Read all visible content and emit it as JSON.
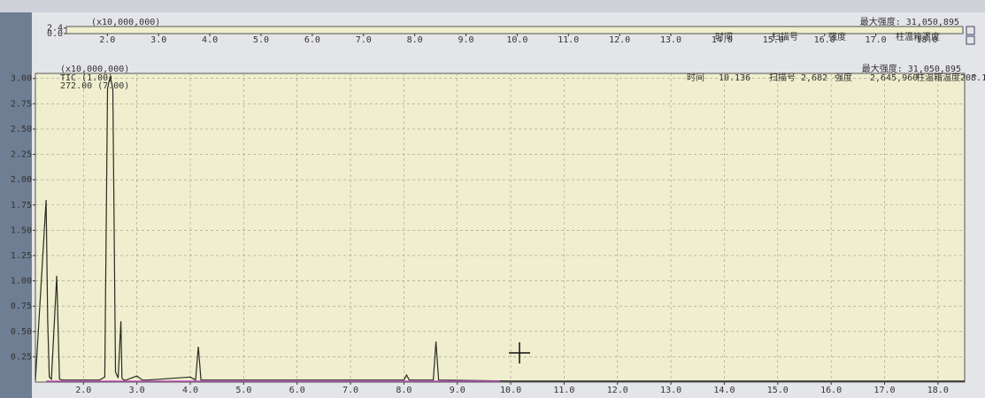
{
  "chart_data": [
    {
      "type": "axis",
      "scale_label": "(x10,000,000)",
      "max_intensity": "最大强度: 31,050,895",
      "header": [
        "时间",
        "扫描号",
        "强度",
        "柱温箱温度"
      ],
      "xlim": [
        1.2,
        18.7
      ],
      "xticks": [
        {
          "value": 2,
          "label": "2.0"
        },
        {
          "value": 3,
          "label": "3.0"
        },
        {
          "value": 4,
          "label": "4.0"
        },
        {
          "value": 5,
          "label": "5.0"
        },
        {
          "value": 6,
          "label": "6.0"
        },
        {
          "value": 7,
          "label": "7.0"
        },
        {
          "value": 8,
          "label": "8.0"
        },
        {
          "value": 9,
          "label": "9.0"
        },
        {
          "value": 10,
          "label": "10.0"
        },
        {
          "value": 11,
          "label": "11.0"
        },
        {
          "value": 12,
          "label": "12.0"
        },
        {
          "value": 13,
          "label": "13.0"
        },
        {
          "value": 14,
          "label": "14.0"
        },
        {
          "value": 15,
          "label": "15.0"
        },
        {
          "value": 16,
          "label": "16.0"
        },
        {
          "value": 17,
          "label": "17.0"
        },
        {
          "value": 18,
          "label": "18.0"
        }
      ],
      "ylim": [
        0,
        3.05
      ],
      "yticks": [
        {
          "value": 0,
          "label": "0.0"
        },
        2.4
      ]
    },
    {
      "type": "line",
      "scale_label": "(x10,000,000)",
      "max_intensity": "最大强度: 31,050,895",
      "status": [
        "时间",
        "10.136",
        "扫描号",
        "2,682",
        "强度",
        "2,645,960",
        "柱温箱温度208.18"
      ],
      "grid": true,
      "xlim": [
        1.1,
        18.5
      ],
      "xticks": [
        {
          "value": 2,
          "label": "2.0"
        },
        {
          "value": 3,
          "label": "3.0"
        },
        {
          "value": 4,
          "label": "4.0"
        },
        {
          "value": 5,
          "label": "5.0"
        },
        {
          "value": 6,
          "label": "6.0"
        },
        {
          "value": 7,
          "label": "7.0"
        },
        {
          "value": 8,
          "label": "8.0"
        },
        {
          "value": 9,
          "label": "9.0"
        },
        {
          "value": 10,
          "label": "10.0"
        },
        {
          "value": 11,
          "label": "11.0"
        },
        {
          "value": 12,
          "label": "12.0"
        },
        {
          "value": 13,
          "label": "13.0"
        },
        {
          "value": 14,
          "label": "14.0"
        },
        {
          "value": 15,
          "label": "15.0"
        },
        {
          "value": 16,
          "label": "16.0"
        },
        {
          "value": 17,
          "label": "17.0"
        },
        {
          "value": 18,
          "label": "18.0"
        }
      ],
      "ylim": [
        0,
        3.05
      ],
      "yticks": [
        0.25,
        {
          "value": 0.5,
          "label": "0.50"
        },
        0.75,
        {
          "value": 1,
          "label": "1.00"
        },
        1.25,
        {
          "value": 1.5,
          "label": "1.50"
        },
        1.75,
        {
          "value": 2,
          "label": "2.00"
        },
        2.25,
        {
          "value": 2.5,
          "label": "2.50"
        },
        2.75,
        {
          "value": 3,
          "label": "3.00"
        }
      ],
      "series": [
        {
          "name": "TIC (1.00)",
          "color": "#2a2a22",
          "x": [
            1.1,
            1.2,
            1.3,
            1.33,
            1.36,
            1.4,
            1.5,
            1.55,
            1.6,
            1.8,
            2.3,
            2.4,
            2.45,
            2.5,
            2.55,
            2.6,
            2.65,
            2.7,
            2.72,
            2.75,
            2.8,
            3.0,
            3.1,
            3.2,
            4.0,
            4.1,
            4.15,
            4.2,
            5.0,
            8.0,
            8.05,
            8.1,
            8.55,
            8.6,
            8.65,
            10.0,
            18.5
          ],
          "values": [
            0.02,
            0.9,
            1.8,
            0.6,
            0.05,
            0.03,
            1.05,
            0.03,
            0.02,
            0.02,
            0.02,
            0.05,
            2.9,
            3.02,
            2.9,
            0.1,
            0.04,
            0.6,
            0.04,
            0.02,
            0.02,
            0.06,
            0.02,
            0.02,
            0.05,
            0.02,
            0.35,
            0.02,
            0.02,
            0.02,
            0.07,
            0.02,
            0.02,
            0.4,
            0.02,
            0.01,
            0.01
          ]
        },
        {
          "name": "272.00 (7.00)",
          "color": "#c850c8",
          "x": [
            1.3,
            9.8
          ],
          "values": [
            0.01,
            0.01
          ]
        }
      ]
    }
  ]
}
